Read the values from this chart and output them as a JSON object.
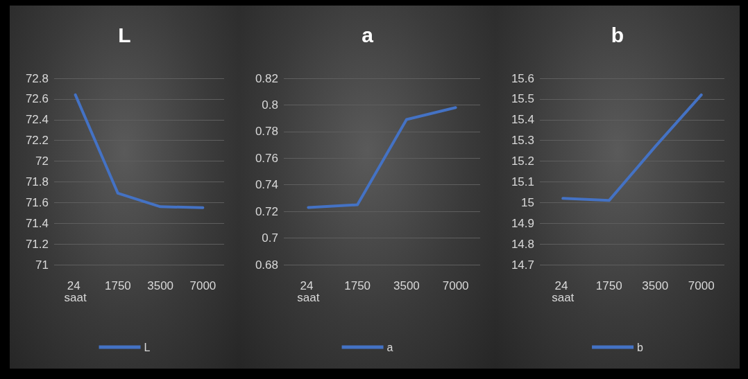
{
  "chart_data": [
    {
      "type": "line",
      "title": "L",
      "categories": [
        "24 saat",
        "1750",
        "3500",
        "7000"
      ],
      "series": [
        {
          "name": "L",
          "color": "#4472c4",
          "values": [
            72.64,
            71.69,
            71.56,
            71.55
          ]
        }
      ],
      "ylim": [
        71,
        72.8
      ],
      "yticks": [
        71,
        71.2,
        71.4,
        71.6,
        71.8,
        72,
        72.2,
        72.4,
        72.6,
        72.8
      ],
      "grid": "y",
      "legend": "bottom",
      "marker": "none",
      "line_style": "solid"
    },
    {
      "type": "line",
      "title": "a",
      "categories": [
        "24 saat",
        "1750",
        "3500",
        "7000"
      ],
      "series": [
        {
          "name": "a",
          "color": "#4472c4",
          "values": [
            0.723,
            0.725,
            0.789,
            0.798
          ]
        }
      ],
      "ylim": [
        0.68,
        0.82
      ],
      "yticks": [
        0.68,
        0.7,
        0.72,
        0.74,
        0.76,
        0.78,
        0.8,
        0.82
      ],
      "grid": "y",
      "legend": "bottom",
      "marker": "none",
      "line_style": "solid"
    },
    {
      "type": "line",
      "title": "b",
      "categories": [
        "24 saat",
        "1750",
        "3500",
        "7000"
      ],
      "series": [
        {
          "name": "b",
          "color": "#4472c4",
          "values": [
            15.02,
            15.01,
            15.27,
            15.52
          ]
        }
      ],
      "ylim": [
        14.7,
        15.6
      ],
      "yticks": [
        14.7,
        14.8,
        14.9,
        15,
        15.1,
        15.2,
        15.3,
        15.4,
        15.5,
        15.6
      ],
      "grid": "y",
      "legend": "bottom",
      "marker": "none",
      "line_style": "solid"
    }
  ]
}
